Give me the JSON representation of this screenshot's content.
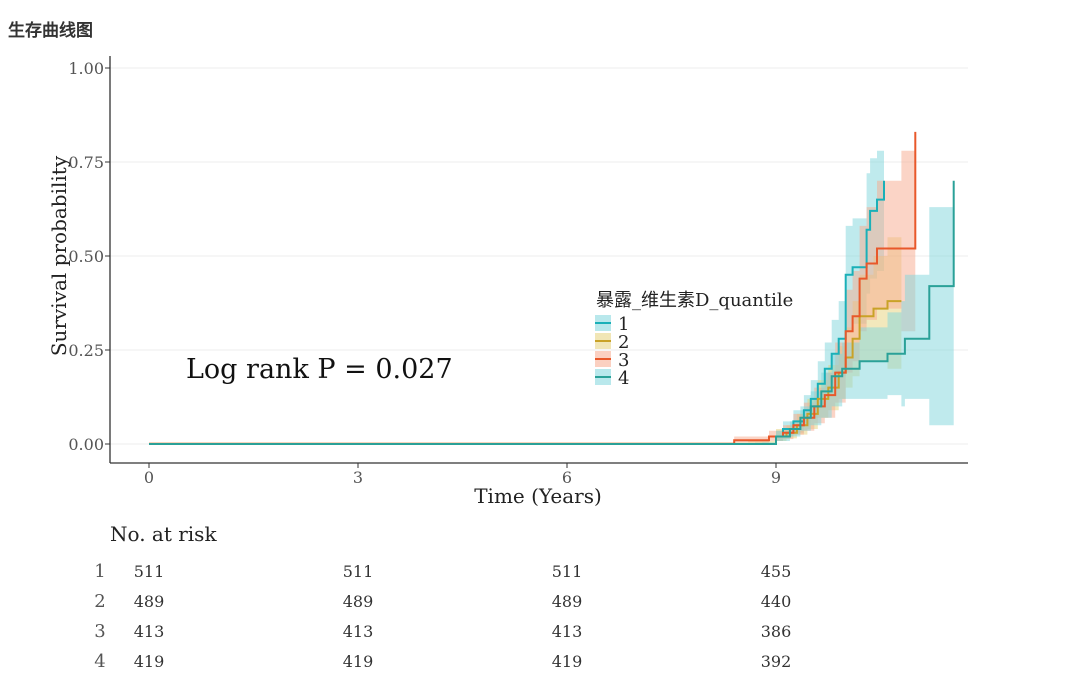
{
  "panel": {
    "title": "生存曲线图"
  },
  "chart_data": {
    "type": "line",
    "xlabel": "Time (Years)",
    "ylabel": "Survival probability",
    "xlim": [
      -1,
      11.5
    ],
    "ylim": [
      -0.05,
      1.03
    ],
    "xticks": [
      0,
      3,
      6,
      9
    ],
    "yticks": [
      0.0,
      0.25,
      0.5,
      0.75,
      1.0
    ],
    "ytick_labels": [
      "0.00",
      "0.25",
      "0.50",
      "0.75",
      "1.00"
    ],
    "grid": true,
    "annotation": "Log rank P = 0.027",
    "legend": {
      "title": "暴露_维生素D_quantile",
      "position": "center-right"
    },
    "series": [
      {
        "name": "1",
        "color": "#1ab0b8",
        "band_color": "#7fd6dc",
        "points": [
          [
            0,
            0
          ],
          [
            8.7,
            0
          ],
          [
            9.0,
            0.02
          ],
          [
            9.1,
            0.04
          ],
          [
            9.25,
            0.06
          ],
          [
            9.4,
            0.09
          ],
          [
            9.5,
            0.12
          ],
          [
            9.6,
            0.16
          ],
          [
            9.7,
            0.2
          ],
          [
            9.8,
            0.24
          ],
          [
            9.9,
            0.28
          ],
          [
            10.0,
            0.45
          ],
          [
            10.1,
            0.47
          ],
          [
            10.3,
            0.57
          ],
          [
            10.35,
            0.62
          ],
          [
            10.45,
            0.65
          ],
          [
            10.55,
            0.7
          ]
        ],
        "upper": [
          [
            0,
            0.002
          ],
          [
            8.7,
            0.004
          ],
          [
            9.0,
            0.035
          ],
          [
            9.1,
            0.06
          ],
          [
            9.25,
            0.09
          ],
          [
            9.4,
            0.13
          ],
          [
            9.5,
            0.17
          ],
          [
            9.6,
            0.22
          ],
          [
            9.7,
            0.27
          ],
          [
            9.8,
            0.33
          ],
          [
            9.9,
            0.38
          ],
          [
            10.0,
            0.58
          ],
          [
            10.1,
            0.6
          ],
          [
            10.3,
            0.72
          ],
          [
            10.35,
            0.76
          ],
          [
            10.45,
            0.78
          ],
          [
            10.55,
            0.79
          ]
        ],
        "lower": [
          [
            0,
            0
          ],
          [
            8.7,
            0
          ],
          [
            9.0,
            0.008
          ],
          [
            9.1,
            0.02
          ],
          [
            9.25,
            0.03
          ],
          [
            9.4,
            0.05
          ],
          [
            9.5,
            0.07
          ],
          [
            9.6,
            0.1
          ],
          [
            9.7,
            0.13
          ],
          [
            9.8,
            0.15
          ],
          [
            9.9,
            0.18
          ],
          [
            10.0,
            0.3
          ],
          [
            10.1,
            0.32
          ],
          [
            10.3,
            0.4
          ],
          [
            10.35,
            0.44
          ],
          [
            10.45,
            0.46
          ],
          [
            10.55,
            0.48
          ]
        ]
      },
      {
        "name": "2",
        "color": "#c9a227",
        "band_color": "#e6d27a",
        "points": [
          [
            0,
            0
          ],
          [
            8.6,
            0
          ],
          [
            9.0,
            0.02
          ],
          [
            9.15,
            0.03
          ],
          [
            9.3,
            0.05
          ],
          [
            9.45,
            0.08
          ],
          [
            9.6,
            0.12
          ],
          [
            9.75,
            0.15
          ],
          [
            9.9,
            0.19
          ],
          [
            10.0,
            0.23
          ],
          [
            10.1,
            0.28
          ],
          [
            10.2,
            0.34
          ],
          [
            10.4,
            0.36
          ],
          [
            10.6,
            0.38
          ],
          [
            10.8,
            0.38
          ]
        ],
        "upper": [
          [
            0,
            0.004
          ],
          [
            8.6,
            0.008
          ],
          [
            9.0,
            0.04
          ],
          [
            9.15,
            0.05
          ],
          [
            9.3,
            0.08
          ],
          [
            9.45,
            0.12
          ],
          [
            9.6,
            0.17
          ],
          [
            9.75,
            0.21
          ],
          [
            9.9,
            0.26
          ],
          [
            10.0,
            0.31
          ],
          [
            10.1,
            0.38
          ],
          [
            10.2,
            0.45
          ],
          [
            10.4,
            0.5
          ],
          [
            10.6,
            0.55
          ],
          [
            10.8,
            0.6
          ]
        ],
        "lower": [
          [
            0,
            0
          ],
          [
            8.6,
            0
          ],
          [
            9.0,
            0.008
          ],
          [
            9.15,
            0.015
          ],
          [
            9.3,
            0.025
          ],
          [
            9.45,
            0.04
          ],
          [
            9.6,
            0.07
          ],
          [
            9.75,
            0.09
          ],
          [
            9.9,
            0.12
          ],
          [
            10.0,
            0.15
          ],
          [
            10.1,
            0.18
          ],
          [
            10.2,
            0.22
          ],
          [
            10.4,
            0.22
          ],
          [
            10.6,
            0.2
          ],
          [
            10.8,
            0.18
          ]
        ]
      },
      {
        "name": "3",
        "color": "#e8582a",
        "band_color": "#f7a98e",
        "points": [
          [
            0,
            0
          ],
          [
            8.4,
            0.01
          ],
          [
            8.9,
            0.02
          ],
          [
            9.1,
            0.03
          ],
          [
            9.25,
            0.05
          ],
          [
            9.4,
            0.07
          ],
          [
            9.55,
            0.1
          ],
          [
            9.7,
            0.13
          ],
          [
            9.85,
            0.19
          ],
          [
            10.0,
            0.3
          ],
          [
            10.1,
            0.34
          ],
          [
            10.2,
            0.44
          ],
          [
            10.3,
            0.48
          ],
          [
            10.45,
            0.52
          ],
          [
            10.8,
            0.52
          ],
          [
            11.0,
            0.52
          ],
          [
            11.0,
            0.83
          ]
        ],
        "upper": [
          [
            0,
            0.005
          ],
          [
            8.4,
            0.02
          ],
          [
            8.9,
            0.035
          ],
          [
            9.1,
            0.05
          ],
          [
            9.25,
            0.08
          ],
          [
            9.4,
            0.11
          ],
          [
            9.55,
            0.15
          ],
          [
            9.7,
            0.19
          ],
          [
            9.85,
            0.27
          ],
          [
            10.0,
            0.41
          ],
          [
            10.1,
            0.46
          ],
          [
            10.2,
            0.58
          ],
          [
            10.3,
            0.63
          ],
          [
            10.45,
            0.7
          ],
          [
            10.8,
            0.78
          ],
          [
            11.0,
            0.88
          ],
          [
            11.0,
            0.88
          ]
        ],
        "lower": [
          [
            0,
            0
          ],
          [
            8.4,
            0.004
          ],
          [
            8.9,
            0.008
          ],
          [
            9.1,
            0.013
          ],
          [
            9.25,
            0.025
          ],
          [
            9.4,
            0.035
          ],
          [
            9.55,
            0.055
          ],
          [
            9.7,
            0.07
          ],
          [
            9.85,
            0.11
          ],
          [
            10.0,
            0.19
          ],
          [
            10.1,
            0.22
          ],
          [
            10.2,
            0.3
          ],
          [
            10.3,
            0.33
          ],
          [
            10.45,
            0.36
          ],
          [
            10.8,
            0.3
          ],
          [
            11.0,
            0.35
          ],
          [
            11.0,
            0.35
          ]
        ]
      },
      {
        "name": "4",
        "color": "#2aa198",
        "band_color": "#7fd6dc",
        "points": [
          [
            0,
            0
          ],
          [
            8.8,
            0
          ],
          [
            9.0,
            0.02
          ],
          [
            9.2,
            0.04
          ],
          [
            9.35,
            0.07
          ],
          [
            9.5,
            0.1
          ],
          [
            9.65,
            0.14
          ],
          [
            9.8,
            0.18
          ],
          [
            9.95,
            0.2
          ],
          [
            10.2,
            0.22
          ],
          [
            10.6,
            0.24
          ],
          [
            10.8,
            0.24
          ],
          [
            10.85,
            0.28
          ],
          [
            11.2,
            0.28
          ],
          [
            11.2,
            0.42
          ],
          [
            11.55,
            0.42
          ],
          [
            11.55,
            0.7
          ]
        ],
        "upper": [
          [
            0,
            0.002
          ],
          [
            8.8,
            0.004
          ],
          [
            9.0,
            0.035
          ],
          [
            9.2,
            0.06
          ],
          [
            9.35,
            0.1
          ],
          [
            9.5,
            0.14
          ],
          [
            9.65,
            0.19
          ],
          [
            9.8,
            0.24
          ],
          [
            9.95,
            0.27
          ],
          [
            10.2,
            0.31
          ],
          [
            10.6,
            0.35
          ],
          [
            10.8,
            0.38
          ],
          [
            10.85,
            0.45
          ],
          [
            11.2,
            0.55
          ],
          [
            11.2,
            0.63
          ],
          [
            11.55,
            0.75
          ],
          [
            11.55,
            0.84
          ]
        ],
        "lower": [
          [
            0,
            0
          ],
          [
            8.8,
            0
          ],
          [
            9.0,
            0.008
          ],
          [
            9.2,
            0.02
          ],
          [
            9.35,
            0.035
          ],
          [
            9.5,
            0.05
          ],
          [
            9.65,
            0.07
          ],
          [
            9.8,
            0.1
          ],
          [
            9.95,
            0.12
          ],
          [
            10.2,
            0.12
          ],
          [
            10.6,
            0.13
          ],
          [
            10.8,
            0.1
          ],
          [
            10.85,
            0.12
          ],
          [
            11.2,
            0.08
          ],
          [
            11.2,
            0.05
          ],
          [
            11.55,
            0.2
          ],
          [
            11.55,
            0.3
          ]
        ]
      }
    ]
  },
  "risk_table": {
    "title": "No. at risk",
    "times": [
      0,
      3,
      6,
      9
    ],
    "strata": [
      {
        "label": "1",
        "values": [
          "511",
          "511",
          "511",
          "455"
        ]
      },
      {
        "label": "2",
        "values": [
          "489",
          "489",
          "489",
          "440"
        ]
      },
      {
        "label": "3",
        "values": [
          "413",
          "413",
          "413",
          "386"
        ]
      },
      {
        "label": "4",
        "values": [
          "419",
          "419",
          "419",
          "392"
        ]
      }
    ]
  }
}
